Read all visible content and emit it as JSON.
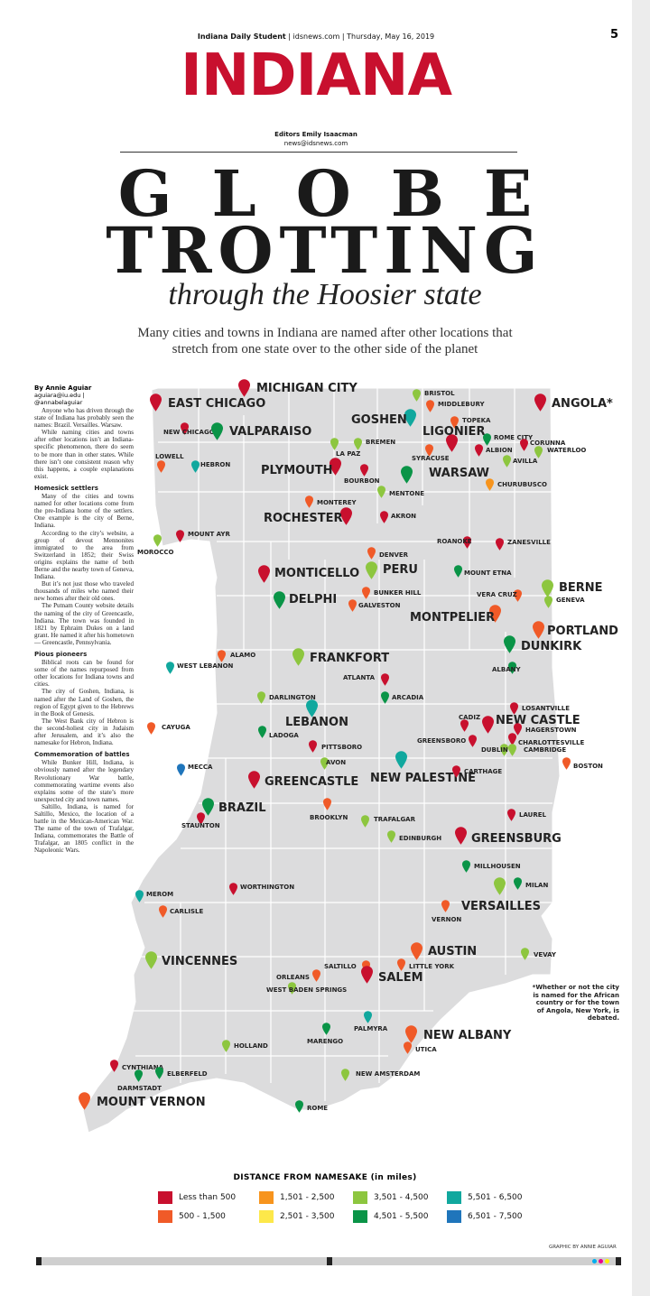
{
  "folio": {
    "paper": "Indiana Daily Student",
    "site": "idsnews.com",
    "date": "Thursday, May 16, 2019",
    "page": "5"
  },
  "section": "INDIANA",
  "editors": {
    "line1": "Editors Emily Isaacman",
    "line2": "news@idsnews.com"
  },
  "headline": {
    "line1": "GLOBE",
    "line2": "TROTTING",
    "line3": "through the Hoosier state"
  },
  "dek": "Many cities and towns in Indiana are named after other locations that stretch from one state over to the other side of the planet",
  "byline": {
    "name": "By Annie Aguiar",
    "contact": "aguiara@iu.edu | @annabelaguiar"
  },
  "story": {
    "p1": "Anyone who has driven through the state of Indiana has probably seen the names: Brazil. Versailles. Warsaw.",
    "p2": "While naming cities and towns after other locations isn’t an Indiana-specific phenomenon, there do seem to be more than in other states. While there isn’t one consistent reason why this happens, a couple explanations exist.",
    "h1": "Homesick settlers",
    "p3": "Many of the cities and towns named for other locations come from the pre-Indiana home of the settlers. One example is the city of Berne, Indiana.",
    "p4": "According to the city’s website, a group of devout Mennonites immigrated to the area from Switzerland in 1852; their Swiss origins explains the name of both Berne and the nearby town of Geneva, Indiana.",
    "p5": "But it’s not just those who traveled thousands of miles who named their new homes after their old ones.",
    "p6": "The Putnam County website details the naming of the city of Greencastle, Indiana. The town was founded in 1821 by Ephraim Dukes on a land grant. He named it after his hometown — Greencastle, Pennsylvania.",
    "h2": "Pious pioneers",
    "p7": "Biblical roots can be found for some of the names repurposed from other locations for Indiana towns and cities.",
    "p8": "The city of Goshen, Indiana, is named after the Land of Goshen, the region of Egypt given to the Hebrews in the Book of Genesis.",
    "p9": "The West Bank city of Hebron is the second-holiest city in Judaism after Jerusalem, and it’s also the namesake for Hebron, Indiana.",
    "h3": "Commemoration of battles",
    "p10": "While Bunker Hill, Indiana, is obviously named after the legendary Revolutionary War battle, commemorating wartime events also explains some of the state’s more unexpected city and town names.",
    "p11": "Saltillo, Indiana, is named for Saltillo, Mexico, the location of a battle in the Mexican-American War. The name of the town of Trafalgar, Indiana, commemorates the Battle of Trafalgar, an 1805 conflict in the Napoleonic Wars."
  },
  "note": "*Whether or not the city is named for the African country or for the town of Angola, New York, is debated.",
  "legend": {
    "title": "DISTANCE FROM NAMESAKE (in miles)",
    "items": [
      {
        "label": "Less than 500",
        "color": "#c8102e"
      },
      {
        "label": "500 - 1,500",
        "color": "#f05a28"
      },
      {
        "label": "1,501 - 2,500",
        "color": "#f7941d"
      },
      {
        "label": "2,501 - 3,500",
        "color": "#fde84a"
      },
      {
        "label": "3,501 - 4,500",
        "color": "#8dc63f"
      },
      {
        "label": "4,501 - 5,500",
        "color": "#0a9447"
      },
      {
        "label": "5,501 - 6,500",
        "color": "#11a89e"
      },
      {
        "label": "6,501 - 7,500",
        "color": "#1f75bb"
      }
    ]
  },
  "credit": "GRAPHIC BY ANNIE AGUIAR",
  "cities": [
    {
      "name": "MICHIGAN CITY",
      "size": "l",
      "c": "#c8102e"
    },
    {
      "name": "EAST CHICAGO",
      "size": "l",
      "c": "#c8102e"
    },
    {
      "name": "NEW CHICAGO",
      "size": "s",
      "c": "#c8102e"
    },
    {
      "name": "VALPARAISO",
      "size": "l",
      "c": "#0a9447"
    },
    {
      "name": "LOWELL",
      "size": "s",
      "c": "#f05a28"
    },
    {
      "name": "HEBRON",
      "size": "s",
      "c": "#11a89e"
    },
    {
      "name": "BRISTOL",
      "size": "s",
      "c": "#8dc63f"
    },
    {
      "name": "MIDDLEBURY",
      "size": "s",
      "c": "#f05a28"
    },
    {
      "name": "ANGOLA*",
      "size": "l",
      "c": "#c8102e"
    },
    {
      "name": "GOSHEN",
      "size": "l",
      "c": "#11a89e"
    },
    {
      "name": "TOPEKA",
      "size": "s",
      "c": "#f05a28"
    },
    {
      "name": "LIGONIER",
      "size": "l",
      "c": "#c8102e"
    },
    {
      "name": "ROME CITY",
      "size": "s",
      "c": "#0a9447"
    },
    {
      "name": "CORUNNA",
      "size": "s",
      "c": "#c8102e"
    },
    {
      "name": "WATERLOO",
      "size": "s",
      "c": "#8dc63f"
    },
    {
      "name": "LA PAZ",
      "size": "s",
      "c": "#8dc63f"
    },
    {
      "name": "BREMEN",
      "size": "s",
      "c": "#8dc63f"
    },
    {
      "name": "SYRACUSE",
      "size": "s",
      "c": "#f05a28"
    },
    {
      "name": "ALBION",
      "size": "s",
      "c": "#c8102e"
    },
    {
      "name": "AVILLA",
      "size": "s",
      "c": "#8dc63f"
    },
    {
      "name": "PLYMOUTH",
      "size": "l",
      "c": "#c8102e"
    },
    {
      "name": "BOURBON",
      "size": "s",
      "c": "#c8102e"
    },
    {
      "name": "WARSAW",
      "size": "l",
      "c": "#0a9447"
    },
    {
      "name": "MENTONE",
      "size": "s",
      "c": "#8dc63f"
    },
    {
      "name": "CHURUBUSCO",
      "size": "s",
      "c": "#f7941d"
    },
    {
      "name": "MONTEREY",
      "size": "s",
      "c": "#f05a28"
    },
    {
      "name": "ROCHESTER",
      "size": "l",
      "c": "#c8102e"
    },
    {
      "name": "AKRON",
      "size": "s",
      "c": "#c8102e"
    },
    {
      "name": "MOUNT AYR",
      "size": "s",
      "c": "#c8102e"
    },
    {
      "name": "MOROCCO",
      "size": "s",
      "c": "#8dc63f"
    },
    {
      "name": "ROANOKE",
      "size": "s",
      "c": "#c8102e"
    },
    {
      "name": "ZANESVILLE",
      "size": "s",
      "c": "#c8102e"
    },
    {
      "name": "DENVER",
      "size": "s",
      "c": "#f05a28"
    },
    {
      "name": "PERU",
      "size": "l",
      "c": "#8dc63f"
    },
    {
      "name": "MONTICELLO",
      "size": "l",
      "c": "#c8102e"
    },
    {
      "name": "MOUNT ETNA",
      "size": "s",
      "c": "#0a9447"
    },
    {
      "name": "BERNE",
      "size": "l",
      "c": "#8dc63f"
    },
    {
      "name": "GENEVA",
      "size": "s",
      "c": "#8dc63f"
    },
    {
      "name": "DELPHI",
      "size": "l",
      "c": "#0a9447"
    },
    {
      "name": "BUNKER HILL",
      "size": "s",
      "c": "#f05a28"
    },
    {
      "name": "GALVESTON",
      "size": "s",
      "c": "#f05a28"
    },
    {
      "name": "VERA CRUZ",
      "size": "s",
      "c": "#f05a28"
    },
    {
      "name": "MONTPELIER",
      "size": "l",
      "c": "#f05a28"
    },
    {
      "name": "PORTLAND",
      "size": "l",
      "c": "#f05a28"
    },
    {
      "name": "DUNKIRK",
      "size": "l",
      "c": "#0a9447"
    },
    {
      "name": "ALAMO",
      "size": "s",
      "c": "#f05a28"
    },
    {
      "name": "FRANKFORT",
      "size": "l",
      "c": "#8dc63f"
    },
    {
      "name": "WEST LEBANON",
      "size": "s",
      "c": "#11a89e"
    },
    {
      "name": "ALBANY",
      "size": "s",
      "c": "#0a9447"
    },
    {
      "name": "ATLANTA",
      "size": "s",
      "c": "#c8102e"
    },
    {
      "name": "ARCADIA",
      "size": "s",
      "c": "#0a9447"
    },
    {
      "name": "DARLINGTON",
      "size": "s",
      "c": "#8dc63f"
    },
    {
      "name": "LEBANON",
      "size": "l",
      "c": "#11a89e"
    },
    {
      "name": "LOSANTVILLE",
      "size": "s",
      "c": "#c8102e"
    },
    {
      "name": "CAYUGA",
      "size": "s",
      "c": "#f05a28"
    },
    {
      "name": "LADOGA",
      "size": "s",
      "c": "#0a9447"
    },
    {
      "name": "CADIZ",
      "size": "s",
      "c": "#c8102e"
    },
    {
      "name": "NEW CASTLE",
      "size": "l",
      "c": "#c8102e"
    },
    {
      "name": "HAGERSTOWN",
      "size": "s",
      "c": "#c8102e"
    },
    {
      "name": "PITTSBORO",
      "size": "s",
      "c": "#c8102e"
    },
    {
      "name": "GREENSBORO",
      "size": "s",
      "c": "#c8102e"
    },
    {
      "name": "CHARLOTTESVILLE",
      "size": "s",
      "c": "#c8102e"
    },
    {
      "name": "DUBLIN",
      "size": "s",
      "c": "#8dc63f"
    },
    {
      "name": "CAMBRIDGE",
      "size": "s",
      "c": "#8dc63f"
    },
    {
      "name": "AVON",
      "size": "s",
      "c": "#8dc63f"
    },
    {
      "name": "MECCA",
      "size": "s",
      "c": "#1f75bb"
    },
    {
      "name": "BOSTON",
      "size": "s",
      "c": "#f05a28"
    },
    {
      "name": "NEW PALESTINE",
      "size": "l",
      "c": "#11a89e"
    },
    {
      "name": "CARTHAGE",
      "size": "s",
      "c": "#c8102e"
    },
    {
      "name": "GREENCASTLE",
      "size": "l",
      "c": "#c8102e"
    },
    {
      "name": "BRAZIL",
      "size": "l",
      "c": "#0a9447"
    },
    {
      "name": "BROOKLYN",
      "size": "s",
      "c": "#f05a28"
    },
    {
      "name": "STAUNTON",
      "size": "s",
      "c": "#c8102e"
    },
    {
      "name": "TRAFALGAR",
      "size": "s",
      "c": "#8dc63f"
    },
    {
      "name": "LAUREL",
      "size": "s",
      "c": "#c8102e"
    },
    {
      "name": "EDINBURGH",
      "size": "s",
      "c": "#8dc63f"
    },
    {
      "name": "GREENSBURG",
      "size": "l",
      "c": "#c8102e"
    },
    {
      "name": "MILLHOUSEN",
      "size": "s",
      "c": "#0a9447"
    },
    {
      "name": "MILAN",
      "size": "s",
      "c": "#0a9447"
    },
    {
      "name": "WORTHINGTON",
      "size": "s",
      "c": "#c8102e"
    },
    {
      "name": "MEROM",
      "size": "s",
      "c": "#11a89e"
    },
    {
      "name": "CARLISLE",
      "size": "s",
      "c": "#f05a28"
    },
    {
      "name": "VERSAILLES",
      "size": "l",
      "c": "#8dc63f"
    },
    {
      "name": "VERNON",
      "size": "s",
      "c": "#f05a28"
    },
    {
      "name": "AUSTIN",
      "size": "l",
      "c": "#f05a28"
    },
    {
      "name": "VINCENNES",
      "size": "l",
      "c": "#8dc63f"
    },
    {
      "name": "LITTLE YORK",
      "size": "s",
      "c": "#f05a28"
    },
    {
      "name": "VEVAY",
      "size": "s",
      "c": "#8dc63f"
    },
    {
      "name": "SALTILLO",
      "size": "s",
      "c": "#f05a28"
    },
    {
      "name": "ORLEANS",
      "size": "s",
      "c": "#f05a28"
    },
    {
      "name": "SALEM",
      "size": "l",
      "c": "#c8102e"
    },
    {
      "name": "WEST BADEN SPRINGS",
      "size": "s",
      "c": "#8dc63f"
    },
    {
      "name": "PALMYRA",
      "size": "s",
      "c": "#11a89e"
    },
    {
      "name": "MARENGO",
      "size": "s",
      "c": "#0a9447"
    },
    {
      "name": "NEW ALBANY",
      "size": "l",
      "c": "#f05a28"
    },
    {
      "name": "UTICA",
      "size": "s",
      "c": "#f05a28"
    },
    {
      "name": "HOLLAND",
      "size": "s",
      "c": "#8dc63f"
    },
    {
      "name": "NEW AMSTERDAM",
      "size": "s",
      "c": "#8dc63f"
    },
    {
      "name": "CYNTHIANA",
      "size": "s",
      "c": "#c8102e"
    },
    {
      "name": "DARMSTADT",
      "size": "s",
      "c": "#0a9447"
    },
    {
      "name": "ELBERFELD",
      "size": "s",
      "c": "#0a9447"
    },
    {
      "name": "MOUNT VERNON",
      "size": "l",
      "c": "#f05a28"
    },
    {
      "name": "ROME",
      "size": "s",
      "c": "#0a9447"
    }
  ]
}
